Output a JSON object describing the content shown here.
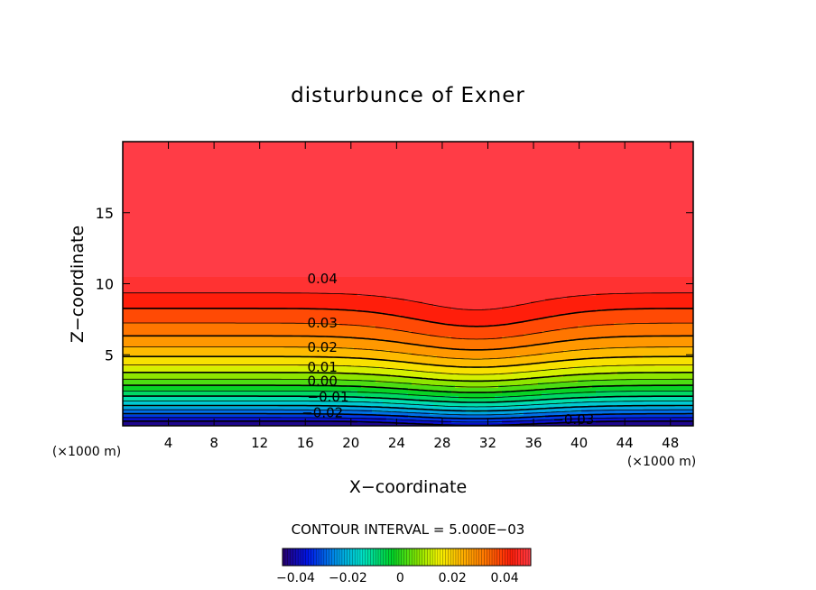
{
  "chart_data": {
    "type": "contour",
    "title": "disturbunce of Exner",
    "xlabel": "X−coordinate",
    "ylabel": "Z−coordinate",
    "x_unit_left": "(×1000 m)",
    "x_unit_right": "(×1000 m)",
    "xlim": [
      0,
      50
    ],
    "ylim": [
      0,
      20
    ],
    "x_ticks": [
      4,
      8,
      12,
      16,
      20,
      24,
      28,
      32,
      36,
      40,
      44,
      48
    ],
    "y_ticks": [
      5,
      10,
      15
    ],
    "x_tick_labels": [
      "4",
      "8",
      "12",
      "16",
      "20",
      "24",
      "28",
      "32",
      "36",
      "40",
      "44",
      "48"
    ],
    "y_tick_labels": [
      "5",
      "10",
      "15"
    ],
    "contour_interval_text": "CONTOUR INTERVAL = 5.000E−03",
    "contour_interval": 0.005,
    "value_range": [
      -0.045,
      0.05
    ],
    "contour_labels": [
      {
        "text": "0.04",
        "x": 17.5,
        "z": 10.4
      },
      {
        "text": "0.03",
        "x": 17.5,
        "z": 7.3
      },
      {
        "text": "0.02",
        "x": 17.5,
        "z": 5.6
      },
      {
        "text": "0.01",
        "x": 17.5,
        "z": 4.2
      },
      {
        "text": "0.00",
        "x": 17.5,
        "z": 3.2
      },
      {
        "text": "−0.01",
        "x": 18.0,
        "z": 2.1
      },
      {
        "text": "−0.02",
        "x": 17.5,
        "z": 1.0
      },
      {
        "text": "−0.03",
        "x": 39.5,
        "z": 0.5
      }
    ],
    "colorbar": {
      "tick_values": [
        -0.04,
        -0.02,
        0,
        0.02,
        0.04
      ],
      "tick_labels": [
        "−0.04",
        "−0.02",
        "0",
        "0.02",
        "0.04"
      ]
    }
  }
}
